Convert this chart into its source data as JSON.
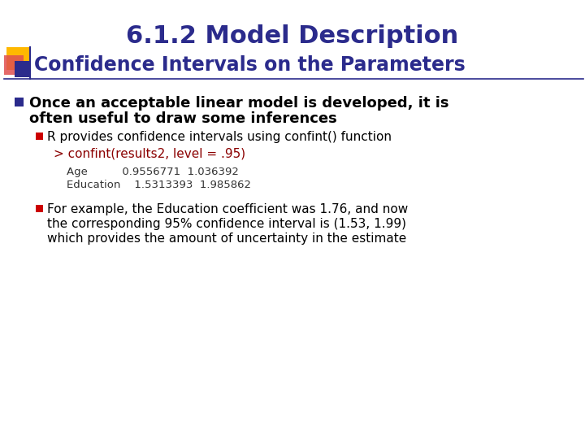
{
  "title": "6.1.2 Model Description",
  "subtitle": "Confidence Intervals on the Parameters",
  "title_color": "#2B2B8C",
  "subtitle_color": "#2B2B8C",
  "background_color": "#FFFFFF",
  "bullet1_line1": "Once an acceptable linear model is developed, it is",
  "bullet1_line2": "often useful to draw some inferences",
  "bullet1_color": "#000000",
  "sub_bullet1": "R provides confidence intervals using confint() function",
  "sub_bullet1_color": "#000000",
  "code_line": "> confint(results2, level = .95)",
  "code_color": "#8B0000",
  "table_line1": "Age          0.9556771  1.036392",
  "table_line2": "Education    1.5313393  1.985862",
  "table_color": "#333333",
  "sub_bullet2_line1": "For example, the Education coefficient was 1.76, and now",
  "sub_bullet2_line2": "the corresponding 95% confidence interval is (1.53, 1.99)",
  "sub_bullet2_line3": "which provides the amount of uncertainty in the estimate",
  "sub_bullet2_color": "#000000",
  "square_yellow_color": "#FFB800",
  "square_red_color": "#E05050",
  "square_blue_color": "#2B2B8C",
  "line_color": "#2B2B8C",
  "bullet_square_color": "#2B2B8C",
  "sub_bullet_square_color": "#CC0000"
}
